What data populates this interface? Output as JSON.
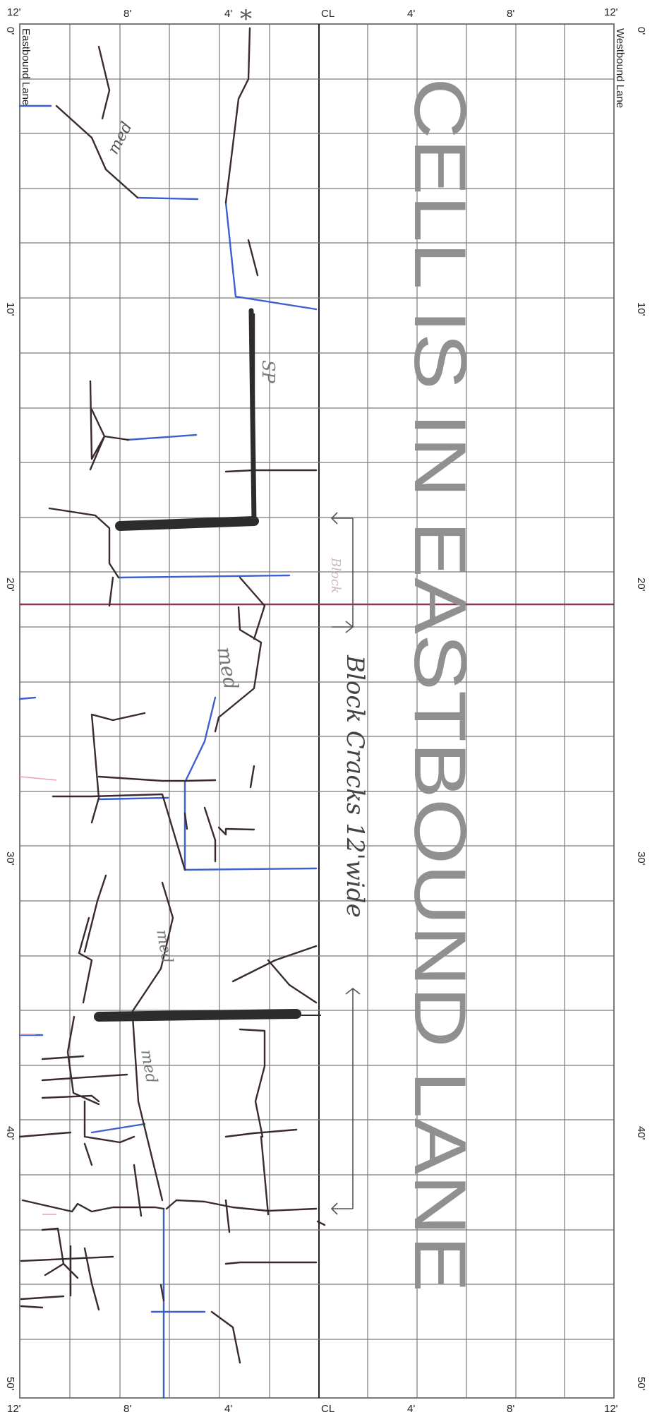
{
  "sheet": {
    "top_labels": {
      "left_edge": "12'",
      "left_mid": "8'",
      "left_inner": "4'",
      "center": "CL",
      "right_inner": "4'",
      "right_mid": "8'",
      "right_edge": "12'"
    },
    "bottom_labels": {
      "left_edge": "12'",
      "left_mid": "8'",
      "left_inner": "4'",
      "center": "CL",
      "right_inner": "4'",
      "right_mid": "8'",
      "right_edge": "12'"
    },
    "stations_left": [
      "0'",
      "10'",
      "20'",
      "30'",
      "40'",
      "50'"
    ],
    "stations_right": [
      "0'",
      "10'",
      "20'",
      "30'",
      "40'",
      "50'"
    ],
    "lane_left": "Eastbound Lane",
    "lane_right": "Westbound Lane"
  },
  "stamp": {
    "text": "CELL IS IN EASTBOUND LANE",
    "color": "#8f8f8f"
  },
  "notes": {
    "block_faint": "Block",
    "block_cracks": "Block Cracks 12'wide",
    "sp": "SP",
    "med_1": "med",
    "med_2": "med",
    "med_3": "med",
    "med_4": "med",
    "star": "*"
  },
  "colors": {
    "grid": "#7a7a7a",
    "crack_dark": "#3a2a30",
    "crack_blue": "#3d5fd0",
    "patch": "#2c2c2c",
    "pink": "#e8a0b4"
  }
}
